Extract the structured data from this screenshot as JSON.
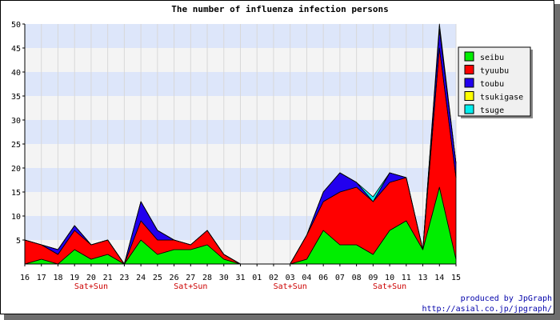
{
  "chart_data": {
    "type": "area",
    "stacked": true,
    "title": "The number of influenza infection persons",
    "xlabel": "",
    "ylabel": "",
    "ylim": [
      0,
      50
    ],
    "yticks": [
      5,
      10,
      15,
      20,
      25,
      30,
      35,
      40,
      45,
      50
    ],
    "grid": true,
    "legend_position": "right",
    "categories": [
      "16",
      "17",
      "18",
      "19",
      "20",
      "21",
      "23",
      "24",
      "25",
      "26",
      "27",
      "28",
      "30",
      "31",
      "01",
      "02",
      "03",
      "04",
      "06",
      "07",
      "08",
      "09",
      "10",
      "11",
      "13",
      "14",
      "15"
    ],
    "weekend_labels": [
      {
        "at": "20",
        "label": "Sat+Sun"
      },
      {
        "at": "27",
        "label": "Sat+Sun"
      },
      {
        "at": "03",
        "label": "Sat+Sun"
      },
      {
        "at": "10",
        "label": "Sat+Sun"
      }
    ],
    "series": [
      {
        "name": "seibu",
        "color": "#00ee00",
        "values": [
          0,
          1,
          0,
          3,
          1,
          2,
          0,
          5,
          2,
          3,
          3,
          4,
          1,
          0,
          0,
          0,
          0,
          1,
          7,
          4,
          4,
          2,
          7,
          9,
          3,
          16,
          1
        ]
      },
      {
        "name": "tyuubu",
        "color": "#ff0000",
        "values": [
          5,
          3,
          2,
          4,
          3,
          3,
          0,
          4,
          3,
          2,
          1,
          3,
          1,
          0,
          0,
          0,
          0,
          5,
          6,
          11,
          12,
          11,
          10,
          9,
          0,
          29,
          17
        ]
      },
      {
        "name": "toubu",
        "color": "#2200ee",
        "values": [
          0,
          0,
          1,
          1,
          0,
          0,
          0,
          4,
          2,
          0,
          0,
          0,
          0,
          0,
          0,
          0,
          0,
          0,
          2,
          4,
          1,
          0,
          2,
          0,
          0,
          4,
          3
        ]
      },
      {
        "name": "tsukigase",
        "color": "#ffff00",
        "values": [
          0,
          0,
          0,
          0,
          0,
          0,
          0,
          0,
          0,
          0,
          0,
          0,
          0,
          0,
          0,
          0,
          0,
          0,
          0,
          0,
          0,
          0,
          0,
          0,
          0,
          0,
          0
        ]
      },
      {
        "name": "tsuge",
        "color": "#00eeee",
        "values": [
          0,
          0,
          0,
          0,
          0,
          0,
          0,
          0,
          0,
          0,
          0,
          0,
          0,
          0,
          0,
          0,
          0,
          0,
          0,
          0,
          0,
          1,
          0,
          0,
          0,
          1,
          0
        ]
      }
    ],
    "colors": {
      "band_a": "#dde6fa",
      "band_b": "#f4f4f4"
    }
  },
  "credit": {
    "line1": "produced by JpGraph",
    "line2": "http://asial.co.jp/jpgraph/"
  }
}
